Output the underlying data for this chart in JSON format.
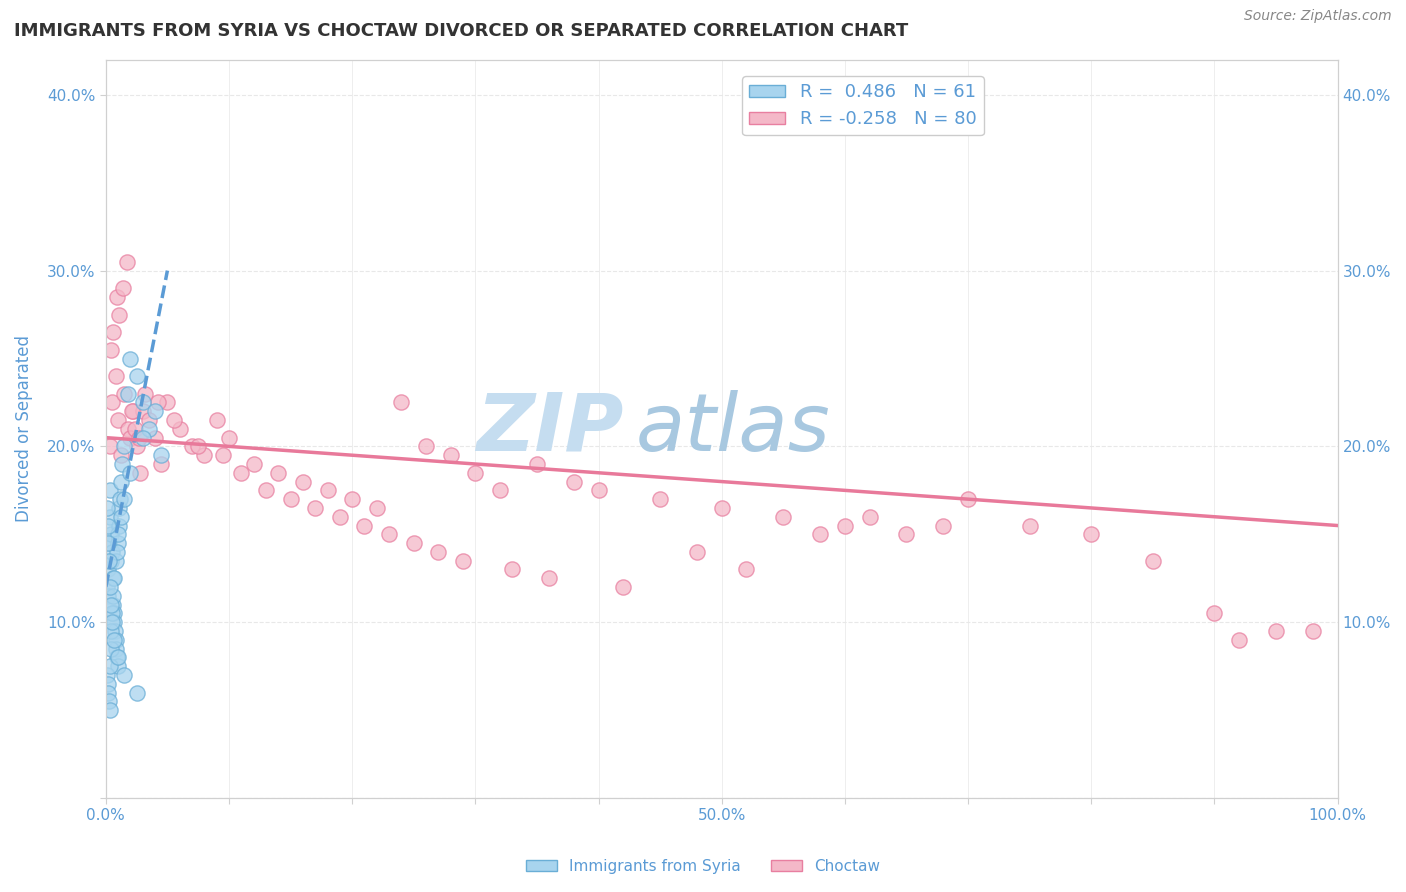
{
  "title": "IMMIGRANTS FROM SYRIA VS CHOCTAW DIVORCED OR SEPARATED CORRELATION CHART",
  "source": "Source: ZipAtlas.com",
  "ylabel": "Divorced or Separated",
  "xlim": [
    0.0,
    100.0
  ],
  "ylim": [
    0.0,
    42.0
  ],
  "xticks": [
    0.0,
    10.0,
    20.0,
    30.0,
    40.0,
    50.0,
    60.0,
    70.0,
    80.0,
    90.0,
    100.0
  ],
  "yticks": [
    0.0,
    10.0,
    20.0,
    30.0,
    40.0
  ],
  "ytick_labels": [
    "",
    "10.0%",
    "20.0%",
    "30.0%",
    "40.0%"
  ],
  "xtick_labels": [
    "0.0%",
    "",
    "",
    "",
    "",
    "50.0%",
    "",
    "",
    "",
    "",
    "100.0%"
  ],
  "blue_R": 0.486,
  "blue_N": 61,
  "pink_R": -0.258,
  "pink_N": 80,
  "blue_color": "#a8d4ee",
  "pink_color": "#f4b8c8",
  "blue_edge_color": "#6aaed6",
  "pink_edge_color": "#e87fa0",
  "blue_line_color": "#5b9bd5",
  "pink_line_color": "#e8799a",
  "axis_label_color": "#5b9bd5",
  "watermark_zip": "ZIP",
  "watermark_atlas": "atlas",
  "watermark_color_zip": "#c5ddf0",
  "watermark_color_atlas": "#a8c8e0",
  "background_color": "#ffffff",
  "grid_color": "#e8e8e8",
  "title_color": "#333333",
  "legend_label_blue": "Immigrants from Syria",
  "legend_label_pink": "Choctaw",
  "blue_scatter_x": [
    0.1,
    0.15,
    0.2,
    0.25,
    0.3,
    0.35,
    0.4,
    0.45,
    0.5,
    0.55,
    0.6,
    0.65,
    0.7,
    0.75,
    0.8,
    0.85,
    0.9,
    0.95,
    1.0,
    1.05,
    1.1,
    1.15,
    1.2,
    1.3,
    1.5,
    1.8,
    2.0,
    2.5,
    3.0,
    3.5,
    4.5,
    0.1,
    0.15,
    0.2,
    0.25,
    0.3,
    0.35,
    0.4,
    0.45,
    0.5,
    0.6,
    0.7,
    0.8,
    0.9,
    1.0,
    1.2,
    1.5,
    2.0,
    3.0,
    4.0,
    0.1,
    0.15,
    0.2,
    0.25,
    0.3,
    0.4,
    0.5,
    0.7,
    1.0,
    1.5,
    2.5
  ],
  "blue_scatter_y": [
    12.0,
    11.5,
    13.0,
    14.5,
    16.0,
    17.5,
    15.0,
    13.5,
    14.0,
    12.5,
    11.0,
    10.5,
    10.0,
    9.5,
    9.0,
    8.5,
    8.0,
    7.5,
    14.5,
    15.5,
    16.5,
    17.0,
    18.0,
    19.0,
    20.0,
    23.0,
    25.0,
    24.0,
    22.5,
    21.0,
    19.5,
    7.0,
    6.5,
    6.0,
    5.5,
    5.0,
    7.5,
    8.5,
    9.5,
    10.5,
    11.5,
    12.5,
    13.5,
    14.0,
    15.0,
    16.0,
    17.0,
    18.5,
    20.5,
    22.0,
    16.5,
    15.5,
    14.5,
    13.5,
    12.0,
    11.0,
    10.0,
    9.0,
    8.0,
    7.0,
    6.0
  ],
  "pink_scatter_x": [
    0.3,
    0.5,
    0.8,
    1.0,
    1.2,
    1.5,
    1.8,
    2.0,
    2.2,
    2.5,
    2.8,
    3.0,
    3.5,
    4.0,
    4.5,
    5.0,
    6.0,
    7.0,
    8.0,
    9.0,
    10.0,
    12.0,
    14.0,
    16.0,
    18.0,
    20.0,
    22.0,
    24.0,
    26.0,
    28.0,
    30.0,
    32.0,
    35.0,
    38.0,
    40.0,
    45.0,
    50.0,
    55.0,
    60.0,
    65.0,
    70.0,
    75.0,
    80.0,
    90.0,
    95.0,
    0.4,
    0.6,
    0.9,
    1.1,
    1.4,
    1.7,
    2.1,
    2.4,
    2.7,
    3.2,
    4.2,
    5.5,
    7.5,
    9.5,
    11.0,
    13.0,
    15.0,
    17.0,
    19.0,
    21.0,
    23.0,
    25.0,
    27.0,
    29.0,
    33.0,
    36.0,
    42.0,
    48.0,
    52.0,
    58.0,
    62.0,
    68.0,
    85.0,
    92.0,
    98.0
  ],
  "pink_scatter_y": [
    20.0,
    22.5,
    24.0,
    21.5,
    19.5,
    23.0,
    21.0,
    20.5,
    22.0,
    20.0,
    18.5,
    22.0,
    21.5,
    20.5,
    19.0,
    22.5,
    21.0,
    20.0,
    19.5,
    21.5,
    20.5,
    19.0,
    18.5,
    18.0,
    17.5,
    17.0,
    16.5,
    22.5,
    20.0,
    19.5,
    18.5,
    17.5,
    19.0,
    18.0,
    17.5,
    17.0,
    16.5,
    16.0,
    15.5,
    15.0,
    17.0,
    15.5,
    15.0,
    10.5,
    9.5,
    25.5,
    26.5,
    28.5,
    27.5,
    29.0,
    30.5,
    22.0,
    21.0,
    20.5,
    23.0,
    22.5,
    21.5,
    20.0,
    19.5,
    18.5,
    17.5,
    17.0,
    16.5,
    16.0,
    15.5,
    15.0,
    14.5,
    14.0,
    13.5,
    13.0,
    12.5,
    12.0,
    14.0,
    13.0,
    15.0,
    16.0,
    15.5,
    13.5,
    9.0,
    9.5
  ],
  "pink_trendline_x0": 0.0,
  "pink_trendline_y0": 20.5,
  "pink_trendline_x1": 100.0,
  "pink_trendline_y1": 15.5,
  "blue_trendline_x0": 0.0,
  "blue_trendline_y0": 12.0,
  "blue_trendline_x1": 5.0,
  "blue_trendline_y1": 30.0
}
